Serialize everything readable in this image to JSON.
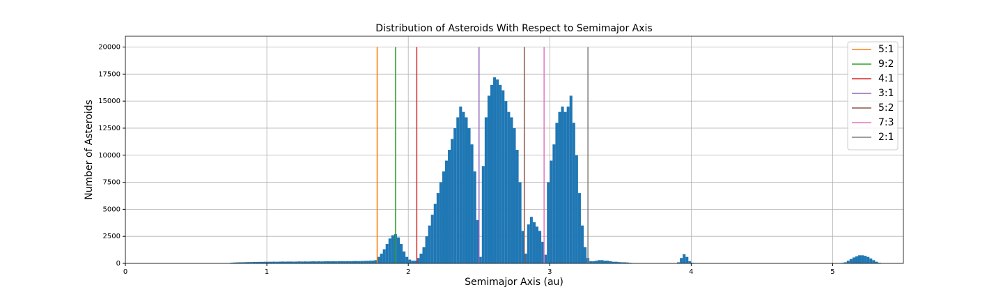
{
  "chart_data": {
    "type": "histogram",
    "title": "Distribution of Asteroids With Respect to Semimajor Axis",
    "xlabel": "Semimajor Axis (au)",
    "ylabel": "Number of Asteroids",
    "color": "#1f77b4",
    "bins": [
      0.74,
      0.76,
      0.78,
      0.8,
      0.82,
      0.84,
      0.86,
      0.88,
      0.9,
      0.92,
      0.94,
      0.96,
      0.98,
      1.0,
      1.02,
      1.04,
      1.06,
      1.08,
      1.1,
      1.12,
      1.14,
      1.16,
      1.18,
      1.2,
      1.22,
      1.24,
      1.26,
      1.28,
      1.3,
      1.32,
      1.34,
      1.36,
      1.38,
      1.4,
      1.42,
      1.44,
      1.46,
      1.48,
      1.5,
      1.52,
      1.54,
      1.56,
      1.58,
      1.6,
      1.62,
      1.64,
      1.66,
      1.68,
      1.7,
      1.72,
      1.74,
      1.76,
      1.78,
      1.8,
      1.82,
      1.84,
      1.86,
      1.88,
      1.9,
      1.92,
      1.94,
      1.96,
      1.98,
      2.0,
      2.02,
      2.04,
      2.06,
      2.08,
      2.1,
      2.12,
      2.14,
      2.16,
      2.18,
      2.2,
      2.22,
      2.24,
      2.26,
      2.28,
      2.3,
      2.32,
      2.34,
      2.36,
      2.38,
      2.4,
      2.42,
      2.44,
      2.46,
      2.48,
      2.5,
      2.52,
      2.54,
      2.56,
      2.58,
      2.6,
      2.62,
      2.64,
      2.66,
      2.68,
      2.7,
      2.72,
      2.74,
      2.76,
      2.78,
      2.8,
      2.82,
      2.84,
      2.86,
      2.88,
      2.9,
      2.92,
      2.94,
      2.96,
      2.98,
      3.0,
      3.02,
      3.04,
      3.06,
      3.08,
      3.1,
      3.12,
      3.14,
      3.16,
      3.18,
      3.2,
      3.22,
      3.24,
      3.26,
      3.28,
      3.3,
      3.32,
      3.34,
      3.36,
      3.38,
      3.4,
      3.42,
      3.44,
      3.46,
      3.48,
      3.5,
      3.52,
      3.54,
      3.56,
      3.58,
      3.6,
      3.9,
      3.92,
      3.94,
      3.96,
      3.98,
      4.0,
      4.02,
      5.06,
      5.08,
      5.1,
      5.12,
      5.14,
      5.16,
      5.18,
      5.2,
      5.22,
      5.24,
      5.26,
      5.28,
      5.3,
      5.32,
      5.34,
      5.36
    ],
    "counts": [
      60,
      80,
      90,
      100,
      100,
      110,
      120,
      120,
      130,
      130,
      140,
      140,
      150,
      150,
      150,
      160,
      150,
      160,
      170,
      160,
      170,
      170,
      160,
      170,
      180,
      170,
      180,
      170,
      180,
      190,
      180,
      190,
      180,
      190,
      200,
      190,
      200,
      190,
      200,
      210,
      200,
      210,
      200,
      210,
      220,
      210,
      220,
      230,
      240,
      250,
      260,
      300,
      600,
      900,
      1300,
      1800,
      2300,
      2600,
      2700,
      2400,
      1800,
      1100,
      600,
      350,
      250,
      250,
      500,
      900,
      1500,
      2500,
      3500,
      4500,
      5500,
      6500,
      7500,
      8500,
      9500,
      10500,
      11500,
      12500,
      13500,
      14500,
      14000,
      13500,
      12500,
      11000,
      8500,
      4000,
      600,
      9000,
      13500,
      15500,
      16500,
      17200,
      17000,
      16500,
      16000,
      15000,
      14000,
      13500,
      12500,
      10500,
      7500,
      3000,
      900,
      3600,
      4300,
      3800,
      3400,
      3000,
      2000,
      800,
      7500,
      9500,
      11000,
      13000,
      14000,
      14500,
      14000,
      14500,
      15500,
      13000,
      10000,
      6500,
      3500,
      1500,
      500,
      200,
      200,
      250,
      300,
      300,
      250,
      250,
      200,
      150,
      150,
      120,
      100,
      100,
      80,
      50,
      30,
      0,
      100,
      500,
      850,
      600,
      200,
      50,
      0,
      50,
      100,
      250,
      400,
      550,
      650,
      750,
      750,
      700,
      600,
      450,
      300,
      150,
      60,
      20
    ],
    "vlines": [
      {
        "name": "5:1",
        "x": 1.78,
        "color": "#ff7f0e"
      },
      {
        "name": "9:2",
        "x": 1.91,
        "color": "#2ca02c"
      },
      {
        "name": "4:1",
        "x": 2.06,
        "color": "#d62728"
      },
      {
        "name": "3:1",
        "x": 2.5,
        "color": "#9467bd"
      },
      {
        "name": "5:2",
        "x": 2.82,
        "color": "#8c564b"
      },
      {
        "name": "7:3",
        "x": 2.96,
        "color": "#e377c2"
      },
      {
        "name": "2:1",
        "x": 3.27,
        "color": "#7f7f7f"
      }
    ],
    "vline_range": [
      0,
      20000
    ],
    "xlim": [
      0,
      5.5
    ],
    "xticks": [
      0,
      1,
      2,
      3,
      4,
      5
    ],
    "ylim": [
      0,
      21000
    ],
    "yticks": [
      0,
      2500,
      5000,
      7500,
      10000,
      12500,
      15000,
      17500,
      20000
    ],
    "grid": true,
    "legend": "upper right"
  }
}
